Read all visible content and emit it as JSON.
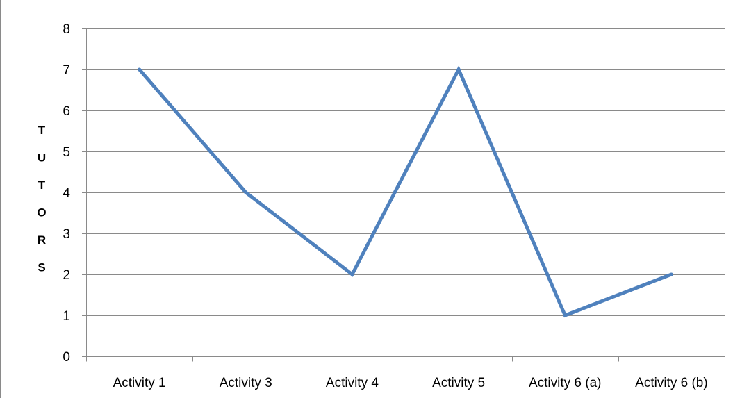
{
  "chart_data": {
    "type": "line",
    "title": "",
    "xlabel": "",
    "ylabel": "TUTORS",
    "categories": [
      "Activity 1",
      "Activity 3",
      "Activity 4",
      "Activity 5",
      "Activity 6 (a)",
      "Activity 6 (b)"
    ],
    "series": [
      {
        "values": [
          7,
          4,
          2,
          7,
          1,
          2
        ],
        "color": "#4f81bd"
      }
    ],
    "ylim": [
      0,
      8
    ],
    "yticks": [
      "0",
      "1",
      "2",
      "3",
      "4",
      "5",
      "6",
      "7",
      "8"
    ],
    "grid": true,
    "legend": "none"
  }
}
